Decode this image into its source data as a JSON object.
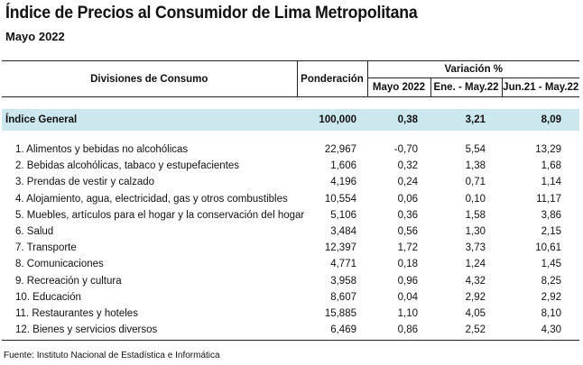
{
  "title": "Índice de Precios al Consumidor de Lima Metropolitana",
  "subtitle": "Mayo 2022",
  "headers": {
    "divisions": "Divisiones de Consumo",
    "weight": "Ponderación",
    "variation": "Variación %",
    "month": "Mayo 2022",
    "ytd": "Ene. - May.22",
    "annual": "Jun.21 - May.22"
  },
  "general": {
    "name": "Índice General",
    "weight": "100,000",
    "month": "0,38",
    "ytd": "3,21",
    "annual": "8,09"
  },
  "rows": [
    {
      "name": "1. Alimentos y bebidas no alcohólicas",
      "weight": "22,967",
      "month": "-0,70",
      "ytd": "5,54",
      "annual": "13,29"
    },
    {
      "name": "2. Bebidas alcohólicas, tabaco y estupefacientes",
      "weight": "1,606",
      "month": "0,32",
      "ytd": "1,38",
      "annual": "1,68"
    },
    {
      "name": "3. Prendas de vestir y calzado",
      "weight": "4,196",
      "month": "0,24",
      "ytd": "0,71",
      "annual": "1,14"
    },
    {
      "name": "4. Alojamiento, agua, electricidad, gas y otros combustibles",
      "weight": "10,554",
      "month": "0,06",
      "ytd": "0,10",
      "annual": "11,17"
    },
    {
      "name": "5. Muebles, artículos para el hogar y la conservación del hogar",
      "weight": "5,106",
      "month": "0,36",
      "ytd": "1,58",
      "annual": "3,86"
    },
    {
      "name": "6. Salud",
      "weight": "3,484",
      "month": "0,56",
      "ytd": "1,30",
      "annual": "2,15"
    },
    {
      "name": "7. Transporte",
      "weight": "12,397",
      "month": "1,72",
      "ytd": "3,73",
      "annual": "10,61"
    },
    {
      "name": "8. Comunicaciones",
      "weight": "4,771",
      "month": "0,18",
      "ytd": "1,24",
      "annual": "1,45"
    },
    {
      "name": "9. Recreación y cultura",
      "weight": "3,958",
      "month": "0,96",
      "ytd": "4,32",
      "annual": "8,25"
    },
    {
      "name": "10. Educación",
      "weight": "8,607",
      "month": "0,04",
      "ytd": "2,92",
      "annual": "2,92"
    },
    {
      "name": "11. Restaurantes y hoteles",
      "weight": "15,885",
      "month": "1,10",
      "ytd": "4,05",
      "annual": "8,10"
    },
    {
      "name": "12. Bienes y servicios diversos",
      "weight": "6,469",
      "month": "0,86",
      "ytd": "2,52",
      "annual": "4,30"
    }
  ],
  "source": "Fuente: Instituto Nacional de Estadística e Informática",
  "colors": {
    "general_row_bg": "#cde7ee"
  }
}
